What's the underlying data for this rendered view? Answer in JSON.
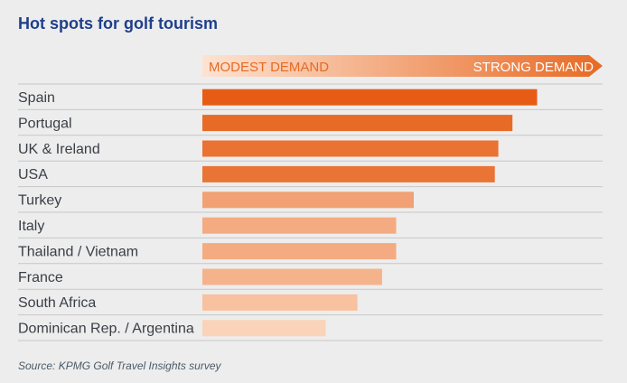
{
  "title": "Hot spots for golf tourism",
  "source": "Source: KPMG Golf Travel Insights survey",
  "scale_labels": {
    "low": "MODEST DEMAND",
    "high": "STRONG DEMAND"
  },
  "colors": {
    "title": "#1f3f8a",
    "label": "#3a3f45",
    "scale_low_text": "#e66a24",
    "scale_high_text": "#ffffff",
    "scale_start": "#fde3d2",
    "scale_end": "#e86a24",
    "bar_strongest": "#e65c14",
    "bar_weakest": "#fbd3b8",
    "gridline": "#c7c7c7"
  },
  "chart_data": {
    "type": "bar",
    "orientation": "horizontal",
    "categories": [
      "Spain",
      "Portugal",
      "UK & Ireland",
      "USA",
      "Turkey",
      "Italy",
      "Thailand / Vietnam",
      "France",
      "South Africa",
      "Dominican Rep. / Argentina"
    ],
    "values": [
      95,
      88,
      84,
      83,
      60,
      55,
      55,
      51,
      44,
      35
    ],
    "value_scale": "relative demand, 0–100 (no axis printed)",
    "xlim": [
      0,
      100
    ],
    "grid": true,
    "legend": "none"
  }
}
